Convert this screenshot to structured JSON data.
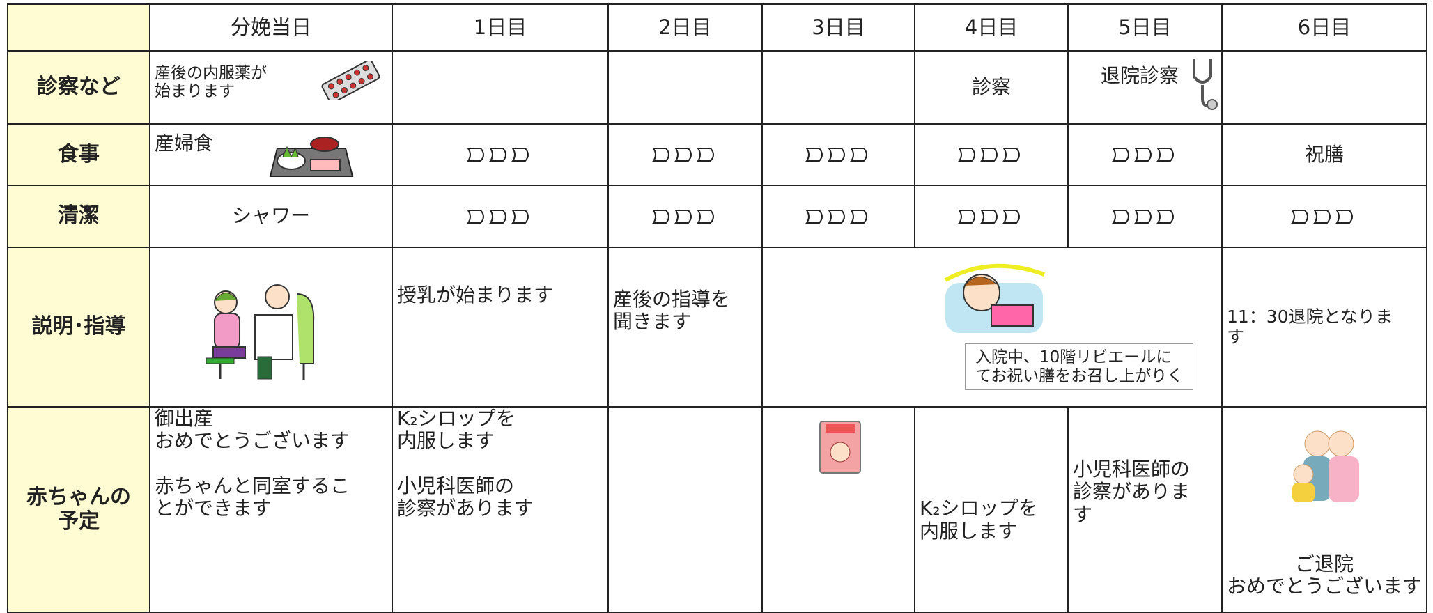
{
  "table": {
    "header": [
      "分娩当日",
      "1日目",
      "2日目",
      "3日目",
      "4日目",
      "5日目",
      "6日目"
    ],
    "rows": [
      {
        "label": "診察など",
        "cells": {
          "0": "産後の内服薬が\n始まります",
          "4": "診察",
          "5": "退院診察"
        }
      },
      {
        "label": "食事",
        "cells": {
          "0": "産婦食",
          "6": "祝膳"
        }
      },
      {
        "label": "清潔",
        "cells": {
          "0": "シャワー"
        }
      },
      {
        "label": "説明･指導",
        "cells": {
          "1": "授乳が始まります",
          "2": "産後の指導を\n聞きます",
          "3": "入院中、10階リビエールに\nてお祝い膳をお召し上がりく",
          "6": "11：30退院となりま\nす"
        }
      },
      {
        "label": "赤ちゃんの\n予定",
        "cells": {
          "0": "御出産\nおめでとうございます\n\n赤ちゃんと同室するこ\nとができます",
          "1": "K₂シロップを\n内服します\n\n小児科医師の\n診察があります",
          "4": "K₂シロップを\n内服します",
          "5": "小児科医師の\n診察がありま\nす",
          "6": "ご退院\nおめでとうございます"
        }
      }
    ]
  }
}
